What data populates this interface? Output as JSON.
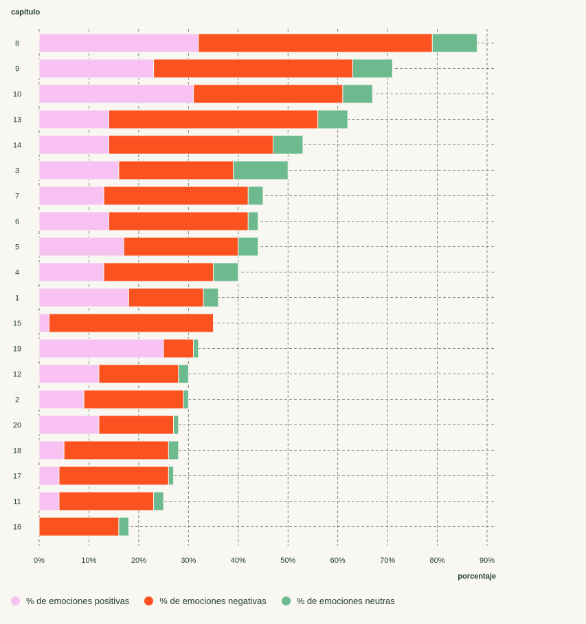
{
  "chart_data": {
    "type": "bar",
    "orientation": "horizontal",
    "stacked": true,
    "ylabel": "capítulo",
    "xlabel": "porcentaje",
    "xlim": [
      0,
      90
    ],
    "xticks": [
      "0%",
      "10%",
      "20%",
      "30%",
      "40%",
      "50%",
      "60%",
      "70%",
      "80%",
      "90%"
    ],
    "grid": true,
    "legend_position": "bottom-left",
    "categories": [
      "8",
      "9",
      "10",
      "13",
      "14",
      "3",
      "7",
      "6",
      "5",
      "4",
      "1",
      "15",
      "19",
      "12",
      "2",
      "20",
      "18",
      "17",
      "11",
      "16"
    ],
    "series": [
      {
        "name": "% de emociones positivas",
        "color": "#f7c2f2",
        "values": [
          32,
          23,
          31,
          14,
          14,
          16,
          13,
          14,
          17,
          13,
          18,
          2,
          25,
          12,
          9,
          12,
          5,
          4,
          4,
          0
        ]
      },
      {
        "name": "% de emociones negativas",
        "color": "#fc521f",
        "values": [
          47,
          40,
          30,
          42,
          33,
          23,
          29,
          28,
          23,
          22,
          15,
          33,
          6,
          16,
          20,
          15,
          21,
          22,
          19,
          16
        ]
      },
      {
        "name": "% de emociones neutras",
        "color": "#6cba8e",
        "values": [
          9,
          8,
          6,
          6,
          6,
          11,
          3,
          2,
          4,
          5,
          3,
          0,
          1,
          2,
          1,
          1,
          2,
          1,
          2,
          2
        ]
      }
    ]
  }
}
